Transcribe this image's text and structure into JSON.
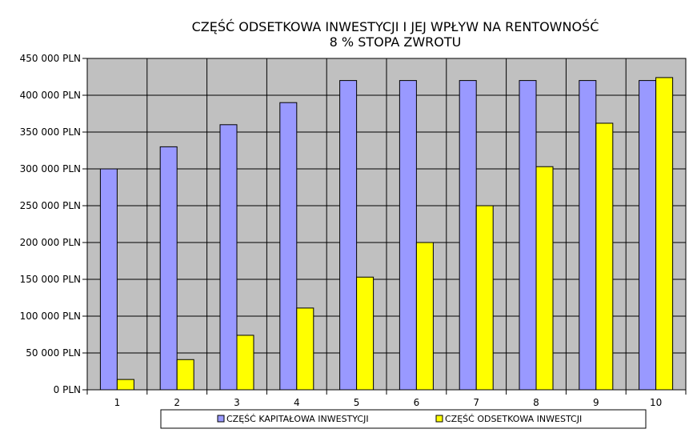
{
  "chart_data": {
    "type": "bar",
    "title": "CZĘŚĆ ODSETKOWA INWESTYCJI I JEJ WPŁYW NA RENTOWNOŚĆ",
    "subtitle": "8 % STOPA ZWROTU",
    "xlabel": "",
    "ylabel": "",
    "categories": [
      "1",
      "2",
      "3",
      "4",
      "5",
      "6",
      "7",
      "8",
      "9",
      "10"
    ],
    "series": [
      {
        "name": "CZĘŚĆ KAPITAŁOWA INWESTYCJI",
        "color": "#9999ff",
        "values": [
          300000,
          330000,
          360000,
          390000,
          420000,
          420000,
          420000,
          420000,
          420000,
          420000
        ]
      },
      {
        "name": "CZĘŚĆ ODSETKOWA INWESTCJI",
        "color": "#ffff00",
        "values": [
          14000,
          41000,
          74000,
          111000,
          153000,
          200000,
          250000,
          303000,
          362000,
          424000
        ]
      }
    ],
    "ylim": [
      0,
      450000
    ],
    "yticks": [
      0,
      50000,
      100000,
      150000,
      200000,
      250000,
      300000,
      350000,
      400000,
      450000
    ],
    "ytick_labels": [
      "0 PLN",
      "50 000 PLN",
      "100 000 PLN",
      "150 000 PLN",
      "200 000 PLN",
      "250 000 PLN",
      "300 000 PLN",
      "350 000 PLN",
      "400 000 PLN",
      "450 000 PLN"
    ],
    "grid": true,
    "plot_background": "#c0c0c0",
    "legend_position": "bottom"
  }
}
